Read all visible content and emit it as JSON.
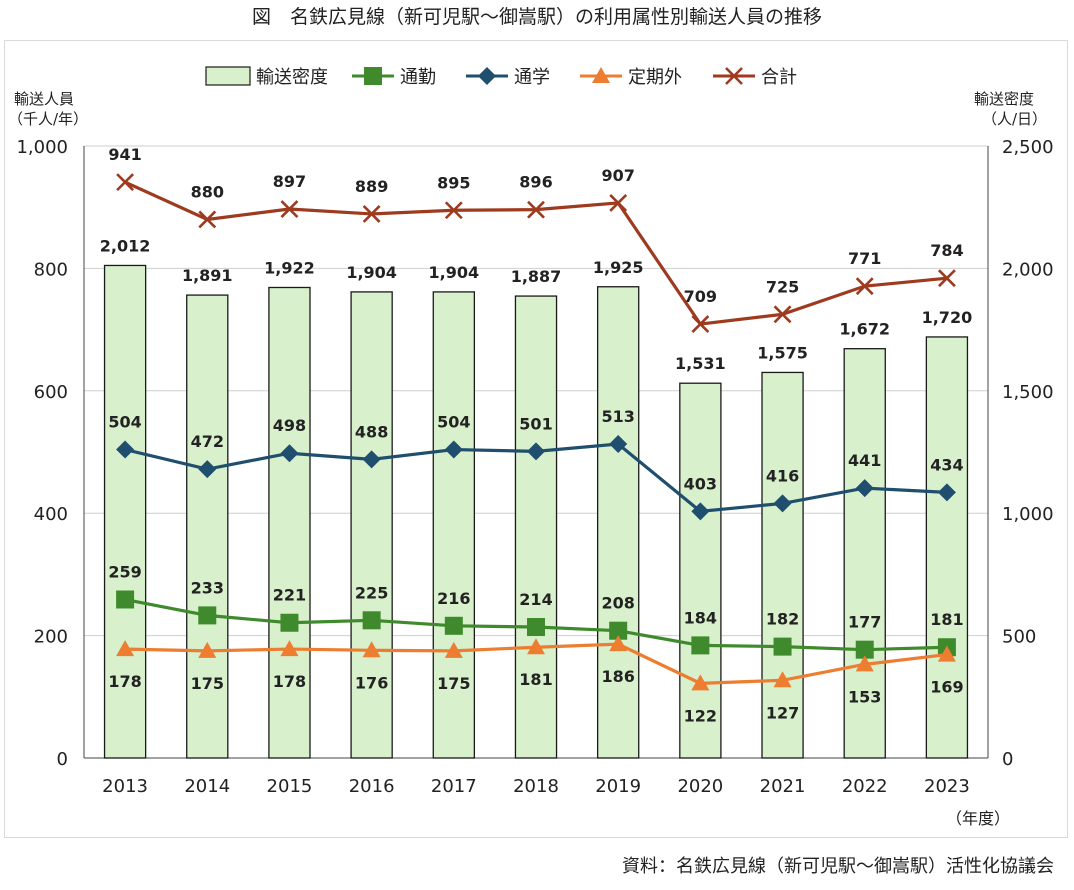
{
  "title": "図　名鉄広見線（新可児駅～御嵩駅）の利用属性別輸送人員の推移",
  "source": "資料：名鉄広見線（新可児駅～御嵩駅）活性化協議会",
  "colors": {
    "bar_fill": "#d8f0cc",
    "bar_stroke": "#1a1a1a",
    "commute": "#3e8a2c",
    "school": "#1f4e6e",
    "other": "#ed7d31",
    "total": "#9e3a1e",
    "grid": "#cfcfcf"
  },
  "chart_data": {
    "type": "bar",
    "categories": [
      "2013",
      "2014",
      "2015",
      "2016",
      "2017",
      "2018",
      "2019",
      "2020",
      "2021",
      "2022",
      "2023"
    ],
    "x_unit": "（年度）",
    "y_left": {
      "label_line1": "輸送人員",
      "label_line2": "（千人/年）",
      "ticks": [
        "0",
        "200",
        "400",
        "600",
        "800",
        "1,000"
      ],
      "min": 0,
      "max": 1000
    },
    "y_right": {
      "label_line1": "輸送密度",
      "label_line2": "（人/日）",
      "ticks": [
        "0",
        "500",
        "1,000",
        "1,500",
        "2,000",
        "2,500"
      ],
      "min": 0,
      "max": 2500
    },
    "grid": true,
    "legend_position": "top",
    "series": [
      {
        "name": "輸送密度",
        "kind": "bar",
        "axis": "right",
        "values": [
          2012,
          1891,
          1922,
          1904,
          1904,
          1887,
          1925,
          1531,
          1575,
          1672,
          1720
        ],
        "labels": [
          "2,012",
          "1,891",
          "1,922",
          "1,904",
          "1,904",
          "1,887",
          "1,925",
          "1,531",
          "1,575",
          "1,672",
          "1,720"
        ]
      },
      {
        "name": "通勤",
        "kind": "line",
        "marker": "square",
        "axis": "left",
        "label_pos": "above",
        "values": [
          259,
          233,
          221,
          225,
          216,
          214,
          208,
          184,
          182,
          177,
          181
        ],
        "labels": [
          "259",
          "233",
          "221",
          "225",
          "216",
          "214",
          "208",
          "184",
          "182",
          "177",
          "181"
        ]
      },
      {
        "name": "通学",
        "kind": "line",
        "marker": "diamond",
        "axis": "left",
        "label_pos": "above",
        "values": [
          504,
          472,
          498,
          488,
          504,
          501,
          513,
          403,
          416,
          441,
          434
        ],
        "labels": [
          "504",
          "472",
          "498",
          "488",
          "504",
          "501",
          "513",
          "403",
          "416",
          "441",
          "434"
        ]
      },
      {
        "name": "定期外",
        "kind": "line",
        "marker": "triangle",
        "axis": "left",
        "label_pos": "below",
        "values": [
          178,
          175,
          178,
          176,
          175,
          181,
          186,
          122,
          127,
          153,
          169
        ],
        "labels": [
          "178",
          "175",
          "178",
          "176",
          "175",
          "181",
          "186",
          "122",
          "127",
          "153",
          "169"
        ]
      },
      {
        "name": "合計",
        "kind": "line",
        "marker": "x",
        "axis": "left",
        "label_pos": "above",
        "values": [
          941,
          880,
          897,
          889,
          895,
          896,
          907,
          709,
          725,
          771,
          784
        ],
        "labels": [
          "941",
          "880",
          "897",
          "889",
          "895",
          "896",
          "907",
          "709",
          "725",
          "771",
          "784"
        ]
      }
    ]
  }
}
